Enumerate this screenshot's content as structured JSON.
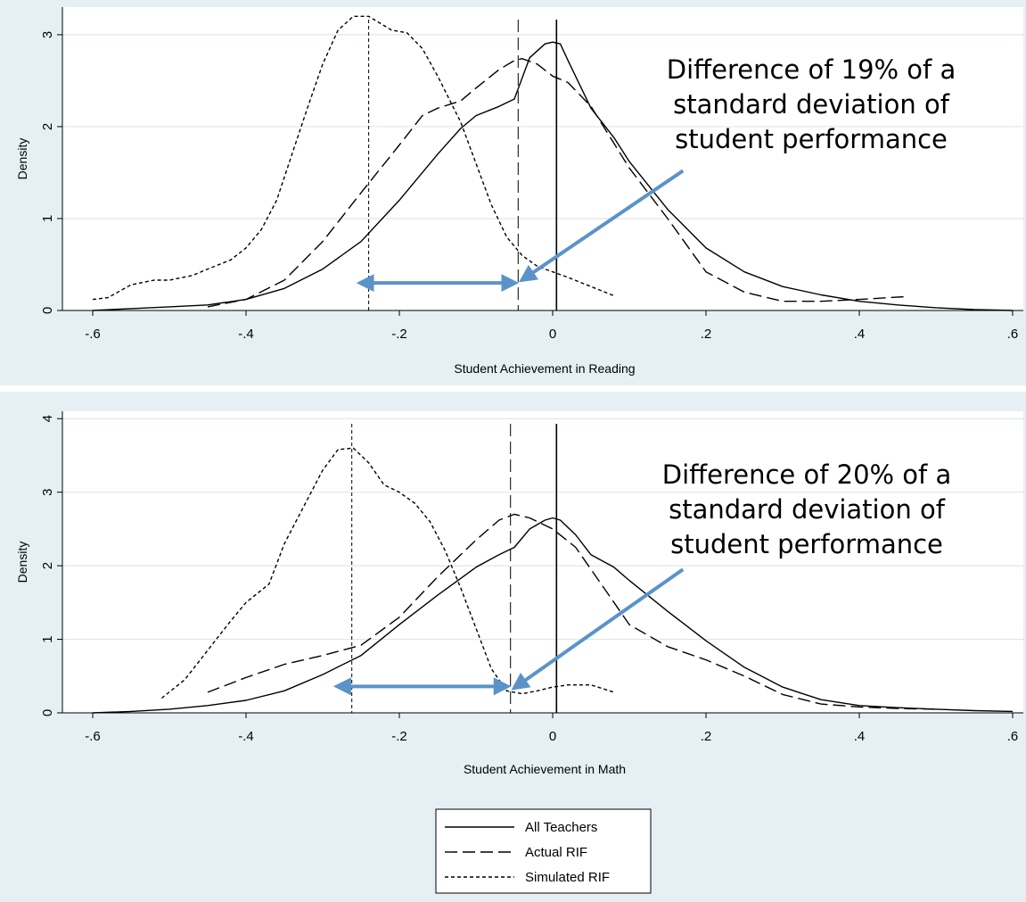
{
  "chart_data": [
    {
      "type": "line",
      "xlabel": "Student Achievement in Reading",
      "ylabel": "Density",
      "xlim": [
        -0.6,
        0.6
      ],
      "ylim": [
        0,
        3.3
      ],
      "xticks": [
        -0.6,
        -0.4,
        -0.2,
        0,
        0.2,
        0.4,
        0.6
      ],
      "xtick_labels": [
        "-.6",
        "-.4",
        "-.2",
        "0",
        ".2",
        ".4",
        ".6"
      ],
      "yticks": [
        0,
        1,
        2,
        3
      ],
      "ytick_labels": [
        "0",
        "1",
        "2",
        "3"
      ],
      "grid": "horizontal",
      "series": [
        {
          "style": "solid",
          "x": [
            -0.6,
            -0.55,
            -0.5,
            -0.45,
            -0.4,
            -0.35,
            -0.3,
            -0.25,
            -0.2,
            -0.15,
            -0.12,
            -0.1,
            -0.07,
            -0.05,
            -0.03,
            -0.01,
            0,
            0.01,
            0.02,
            0.05,
            0.08,
            0.1,
            0.15,
            0.2,
            0.25,
            0.3,
            0.35,
            0.4,
            0.45,
            0.5,
            0.55,
            0.6
          ],
          "y": [
            0,
            0.02,
            0.04,
            0.06,
            0.12,
            0.24,
            0.45,
            0.75,
            1.2,
            1.7,
            1.98,
            2.12,
            2.22,
            2.3,
            2.75,
            2.9,
            2.92,
            2.9,
            2.72,
            2.2,
            1.88,
            1.62,
            1.1,
            0.68,
            0.42,
            0.26,
            0.17,
            0.1,
            0.06,
            0.03,
            0.01,
            0
          ]
        },
        {
          "style": "dashed",
          "x": [
            -0.45,
            -0.4,
            -0.35,
            -0.3,
            -0.25,
            -0.2,
            -0.17,
            -0.15,
            -0.12,
            -0.1,
            -0.07,
            -0.05,
            -0.04,
            -0.02,
            0,
            0.02,
            0.05,
            0.1,
            0.15,
            0.2,
            0.25,
            0.3,
            0.35,
            0.4,
            0.46
          ],
          "y": [
            0.04,
            0.12,
            0.33,
            0.75,
            1.28,
            1.8,
            2.12,
            2.2,
            2.28,
            2.42,
            2.62,
            2.72,
            2.74,
            2.68,
            2.55,
            2.48,
            2.22,
            1.55,
            1.0,
            0.42,
            0.2,
            0.1,
            0.1,
            0.12,
            0.15
          ]
        },
        {
          "style": "short-dash",
          "x": [
            -0.6,
            -0.58,
            -0.55,
            -0.52,
            -0.5,
            -0.47,
            -0.45,
            -0.42,
            -0.4,
            -0.38,
            -0.36,
            -0.34,
            -0.32,
            -0.3,
            -0.28,
            -0.26,
            -0.24,
            -0.23,
            -0.21,
            -0.19,
            -0.17,
            -0.15,
            -0.12,
            -0.1,
            -0.08,
            -0.06,
            -0.04,
            -0.02,
            0,
            0.02,
            0.05,
            0.08
          ],
          "y": [
            0.12,
            0.14,
            0.28,
            0.33,
            0.33,
            0.38,
            0.45,
            0.55,
            0.68,
            0.88,
            1.2,
            1.7,
            2.2,
            2.68,
            3.05,
            3.2,
            3.2,
            3.15,
            3.05,
            3.02,
            2.85,
            2.55,
            2.05,
            1.6,
            1.15,
            0.8,
            0.6,
            0.48,
            0.42,
            0.36,
            0.26,
            0.16
          ]
        }
      ],
      "vlines": [
        {
          "x": 0.005,
          "style": "solid"
        },
        {
          "x": -0.045,
          "style": "dashed"
        },
        {
          "x": -0.24,
          "style": "short-dash"
        }
      ],
      "arrow": {
        "x_from": -0.045,
        "x_to": -0.255,
        "y": 0.3
      },
      "pointer": {
        "from_x": 0.17,
        "from_y": 1.52,
        "to_x": -0.045,
        "to_y": 0.3
      },
      "annotation": [
        "Difference of 19% of a",
        "standard deviation of",
        "student performance"
      ]
    },
    {
      "type": "line",
      "xlabel": "Student Achievement in Math",
      "ylabel": "Density",
      "xlim": [
        -0.6,
        0.6
      ],
      "ylim": [
        0,
        4.1
      ],
      "xticks": [
        -0.6,
        -0.4,
        -0.2,
        0,
        0.2,
        0.4,
        0.6
      ],
      "xtick_labels": [
        "-.6",
        "-.4",
        "-.2",
        "0",
        ".2",
        ".4",
        ".6"
      ],
      "yticks": [
        0,
        1,
        2,
        3,
        4
      ],
      "ytick_labels": [
        "0",
        "1",
        "2",
        "3",
        "4"
      ],
      "grid": "horizontal",
      "series": [
        {
          "style": "solid",
          "x": [
            -0.6,
            -0.55,
            -0.5,
            -0.45,
            -0.4,
            -0.35,
            -0.3,
            -0.25,
            -0.2,
            -0.15,
            -0.1,
            -0.07,
            -0.05,
            -0.03,
            -0.01,
            0,
            0.01,
            0.03,
            0.05,
            0.08,
            0.1,
            0.15,
            0.2,
            0.25,
            0.3,
            0.35,
            0.4,
            0.45,
            0.5,
            0.55,
            0.6
          ],
          "y": [
            0,
            0.02,
            0.05,
            0.1,
            0.17,
            0.3,
            0.52,
            0.78,
            1.2,
            1.6,
            1.98,
            2.15,
            2.25,
            2.5,
            2.62,
            2.65,
            2.62,
            2.42,
            2.15,
            1.98,
            1.8,
            1.38,
            0.98,
            0.62,
            0.35,
            0.18,
            0.1,
            0.07,
            0.05,
            0.03,
            0.02
          ]
        },
        {
          "style": "dashed",
          "x": [
            -0.45,
            -0.4,
            -0.35,
            -0.3,
            -0.25,
            -0.2,
            -0.15,
            -0.1,
            -0.07,
            -0.05,
            -0.03,
            0,
            0.03,
            0.05,
            0.08,
            0.1,
            0.15,
            0.2,
            0.25,
            0.3,
            0.35,
            0.4,
            0.45,
            0.5
          ],
          "y": [
            0.28,
            0.48,
            0.66,
            0.78,
            0.92,
            1.3,
            1.85,
            2.35,
            2.62,
            2.7,
            2.65,
            2.5,
            2.25,
            1.95,
            1.5,
            1.2,
            0.9,
            0.72,
            0.5,
            0.25,
            0.12,
            0.08,
            0.06,
            0.05
          ]
        },
        {
          "style": "short-dash",
          "x": [
            -0.51,
            -0.48,
            -0.45,
            -0.42,
            -0.4,
            -0.37,
            -0.35,
            -0.32,
            -0.3,
            -0.28,
            -0.26,
            -0.24,
            -0.22,
            -0.2,
            -0.18,
            -0.16,
            -0.14,
            -0.12,
            -0.1,
            -0.08,
            -0.06,
            -0.04,
            -0.02,
            0,
            0.02,
            0.05,
            0.08
          ],
          "y": [
            0.2,
            0.45,
            0.85,
            1.25,
            1.5,
            1.75,
            2.3,
            2.9,
            3.3,
            3.58,
            3.6,
            3.4,
            3.1,
            3.0,
            2.85,
            2.6,
            2.2,
            1.7,
            1.15,
            0.6,
            0.3,
            0.26,
            0.3,
            0.35,
            0.38,
            0.38,
            0.28
          ]
        }
      ],
      "vlines": [
        {
          "x": 0.005,
          "style": "solid"
        },
        {
          "x": -0.055,
          "style": "dashed"
        },
        {
          "x": -0.262,
          "style": "short-dash"
        }
      ],
      "arrow": {
        "x_from": -0.055,
        "x_to": -0.285,
        "y": 0.36
      },
      "pointer": {
        "from_x": 0.17,
        "from_y": 1.95,
        "to_x": -0.055,
        "to_y": 0.3
      },
      "annotation": [
        "Difference of 20% of a",
        "standard deviation of",
        "student performance"
      ]
    }
  ],
  "legend": {
    "items": [
      {
        "label": "All Teachers",
        "style": "solid"
      },
      {
        "label": "Actual RIF",
        "style": "dashed"
      },
      {
        "label": "Simulated RIF",
        "style": "short-dash"
      }
    ]
  },
  "colors": {
    "panel_bg": "#e6f0f4",
    "plot_bg": "#ffffff",
    "grid": "#dbe8ec",
    "line": "#000000",
    "arrow": "#5b93c9"
  }
}
